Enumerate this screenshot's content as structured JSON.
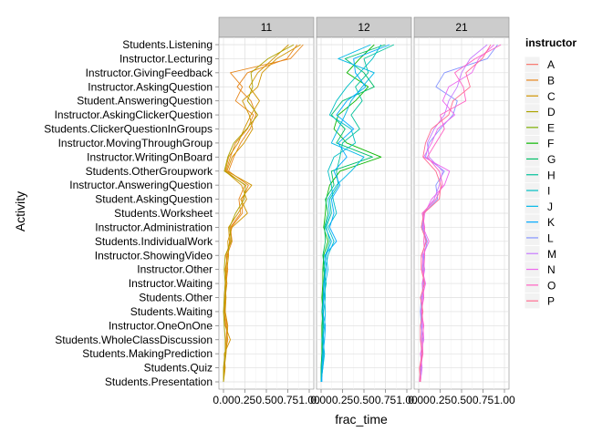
{
  "chart_data": {
    "type": "line",
    "facet_variable": "course",
    "facets": [
      "11",
      "12",
      "21"
    ],
    "xlabel": "frac_time",
    "ylabel": "Activity",
    "xlim": [
      0,
      1
    ],
    "x_ticks": [
      "0.00",
      "0.25",
      "0.50",
      "0.75",
      "1.00"
    ],
    "grid": true,
    "legend": {
      "title": "instructor",
      "position": "right",
      "entries": [
        {
          "name": "A",
          "color": "#f8766d"
        },
        {
          "name": "B",
          "color": "#e7861b"
        },
        {
          "name": "C",
          "color": "#d09400"
        },
        {
          "name": "D",
          "color": "#aba300"
        },
        {
          "name": "E",
          "color": "#7cae00"
        },
        {
          "name": "F",
          "color": "#0cb702"
        },
        {
          "name": "G",
          "color": "#00be67"
        },
        {
          "name": "H",
          "color": "#00c19a"
        },
        {
          "name": "I",
          "color": "#00bfc4"
        },
        {
          "name": "J",
          "color": "#00b8e7"
        },
        {
          "name": "K",
          "color": "#00a9ff"
        },
        {
          "name": "L",
          "color": "#8494ff"
        },
        {
          "name": "M",
          "color": "#c77cff"
        },
        {
          "name": "N",
          "color": "#ed68ed"
        },
        {
          "name": "O",
          "color": "#ff61c3"
        },
        {
          "name": "P",
          "color": "#ff6c91"
        }
      ]
    },
    "activities": [
      "Students.Listening",
      "Instructor.Lecturing",
      "Instructor.GivingFeedback",
      "Instructor.AskingQuestion",
      "Student.AnsweringQuestion",
      "Instructor.AskingClickerQuestion",
      "Students.ClickerQuestionInGroups",
      "Instructor.MovingThroughGroup",
      "Instructor.WritingOnBoard",
      "Students.OtherGroupwork",
      "Instructor.AnsweringQuestion",
      "Student.AskingQuestion",
      "Students.Worksheet",
      "Instructor.Administration",
      "Students.IndividualWork",
      "Instructor.ShowingVideo",
      "Instructor.Other",
      "Instructor.Waiting",
      "Students.Other",
      "Students.Waiting",
      "Instructor.OneOnOne",
      "Students.WholeClassDiscussion",
      "Students.MakingPrediction",
      "Students.Quiz",
      "Students.Presentation"
    ],
    "series": [
      {
        "facet": "11",
        "instructor": "B",
        "values": [
          0.93,
          0.78,
          0.08,
          0.22,
          0.14,
          0.35,
          0.28,
          0.14,
          0.08,
          0.03,
          0.25,
          0.18,
          0.2,
          0.08,
          0.1,
          0.04,
          0.03,
          0.02,
          0.01,
          0.02,
          0.04,
          0.03,
          0.02,
          0.0,
          0.0
        ]
      },
      {
        "facet": "11",
        "instructor": "B",
        "values": [
          0.86,
          0.74,
          0.28,
          0.16,
          0.32,
          0.38,
          0.31,
          0.2,
          0.12,
          0.06,
          0.29,
          0.22,
          0.22,
          0.09,
          0.08,
          0.03,
          0.05,
          0.03,
          0.02,
          0.01,
          0.03,
          0.05,
          0.02,
          0.01,
          0.0
        ]
      },
      {
        "facet": "11",
        "instructor": "C",
        "values": [
          0.76,
          0.58,
          0.4,
          0.3,
          0.42,
          0.32,
          0.24,
          0.17,
          0.06,
          0.02,
          0.21,
          0.27,
          0.17,
          0.06,
          0.07,
          0.05,
          0.02,
          0.04,
          0.02,
          0.01,
          0.02,
          0.08,
          0.01,
          0.02,
          0.0
        ]
      },
      {
        "facet": "11",
        "instructor": "C",
        "values": [
          0.9,
          0.62,
          0.45,
          0.4,
          0.22,
          0.3,
          0.34,
          0.24,
          0.1,
          0.04,
          0.33,
          0.2,
          0.28,
          0.1,
          0.05,
          0.06,
          0.04,
          0.02,
          0.03,
          0.02,
          0.05,
          0.04,
          0.03,
          0.01,
          0.0
        ]
      },
      {
        "facet": "11",
        "instructor": "D",
        "values": [
          0.82,
          0.52,
          0.32,
          0.34,
          0.28,
          0.4,
          0.27,
          0.12,
          0.05,
          0.01,
          0.26,
          0.24,
          0.14,
          0.07,
          0.09,
          0.02,
          0.01,
          0.02,
          0.01,
          0.0,
          0.01,
          0.02,
          0.02,
          0.0,
          0.0
        ]
      },
      {
        "facet": "12",
        "instructor": "F",
        "values": [
          0.62,
          0.45,
          0.3,
          0.55,
          0.4,
          0.2,
          0.15,
          0.3,
          0.7,
          0.22,
          0.1,
          0.06,
          0.05,
          0.03,
          0.08,
          0.03,
          0.02,
          0.02,
          0.01,
          0.02,
          0.01,
          0.01,
          0.01,
          0.0,
          0.0
        ]
      },
      {
        "facet": "12",
        "instructor": "G",
        "values": [
          0.75,
          0.28,
          0.5,
          0.62,
          0.25,
          0.12,
          0.28,
          0.18,
          0.6,
          0.12,
          0.15,
          0.05,
          0.08,
          0.04,
          0.05,
          0.02,
          0.04,
          0.03,
          0.02,
          0.01,
          0.02,
          0.02,
          0.01,
          0.0,
          0.0
        ]
      },
      {
        "facet": "12",
        "instructor": "H",
        "values": [
          0.85,
          0.5,
          0.55,
          0.4,
          0.48,
          0.35,
          0.45,
          0.25,
          0.22,
          0.18,
          0.2,
          0.1,
          0.12,
          0.06,
          0.1,
          0.05,
          0.03,
          0.06,
          0.03,
          0.02,
          0.03,
          0.01,
          0.02,
          0.01,
          0.0
        ]
      },
      {
        "facet": "12",
        "instructor": "I",
        "values": [
          0.7,
          0.6,
          0.45,
          0.3,
          0.18,
          0.1,
          0.35,
          0.4,
          0.15,
          0.08,
          0.12,
          0.14,
          0.18,
          0.08,
          0.15,
          0.08,
          0.05,
          0.04,
          0.05,
          0.03,
          0.02,
          0.03,
          0.03,
          0.02,
          0.0
        ]
      },
      {
        "facet": "12",
        "instructor": "J",
        "values": [
          0.58,
          0.2,
          0.62,
          0.48,
          0.35,
          0.28,
          0.2,
          0.12,
          0.5,
          0.35,
          0.18,
          0.08,
          0.1,
          0.05,
          0.12,
          0.06,
          0.08,
          0.05,
          0.04,
          0.05,
          0.04,
          0.02,
          0.04,
          0.02,
          0.0
        ]
      },
      {
        "facet": "12",
        "instructor": "K",
        "values": [
          0.8,
          0.38,
          0.4,
          0.52,
          0.3,
          0.18,
          0.38,
          0.2,
          0.3,
          0.15,
          0.22,
          0.12,
          0.15,
          0.1,
          0.18,
          0.04,
          0.06,
          0.03,
          0.03,
          0.02,
          0.05,
          0.04,
          0.02,
          0.01,
          0.01
        ]
      },
      {
        "facet": "21",
        "instructor": "L",
        "values": [
          0.92,
          0.8,
          0.3,
          0.2,
          0.45,
          0.4,
          0.25,
          0.12,
          0.08,
          0.3,
          0.2,
          0.22,
          0.06,
          0.04,
          0.1,
          0.06,
          0.05,
          0.06,
          0.03,
          0.02,
          0.03,
          0.05,
          0.04,
          0.03,
          0.01
        ]
      },
      {
        "facet": "21",
        "instructor": "M",
        "values": [
          0.8,
          0.6,
          0.5,
          0.45,
          0.35,
          0.3,
          0.18,
          0.1,
          0.12,
          0.28,
          0.24,
          0.18,
          0.05,
          0.06,
          0.08,
          0.04,
          0.07,
          0.04,
          0.05,
          0.03,
          0.04,
          0.03,
          0.03,
          0.02,
          0.01
        ]
      },
      {
        "facet": "21",
        "instructor": "N",
        "values": [
          0.88,
          0.7,
          0.62,
          0.35,
          0.28,
          0.42,
          0.22,
          0.15,
          0.06,
          0.36,
          0.3,
          0.15,
          0.07,
          0.05,
          0.12,
          0.05,
          0.04,
          0.08,
          0.04,
          0.04,
          0.05,
          0.06,
          0.02,
          0.04,
          0.02
        ]
      },
      {
        "facet": "21",
        "instructor": "O",
        "values": [
          0.96,
          0.66,
          0.42,
          0.52,
          0.55,
          0.25,
          0.3,
          0.2,
          0.1,
          0.24,
          0.28,
          0.2,
          0.04,
          0.07,
          0.06,
          0.07,
          0.06,
          0.05,
          0.06,
          0.03,
          0.06,
          0.04,
          0.05,
          0.02,
          0.01
        ]
      },
      {
        "facet": "21",
        "instructor": "P",
        "values": [
          0.84,
          0.74,
          0.55,
          0.6,
          0.4,
          0.35,
          0.15,
          0.08,
          0.05,
          0.2,
          0.26,
          0.24,
          0.06,
          0.03,
          0.09,
          0.03,
          0.03,
          0.07,
          0.02,
          0.05,
          0.02,
          0.02,
          0.04,
          0.01,
          0.02
        ]
      }
    ]
  }
}
